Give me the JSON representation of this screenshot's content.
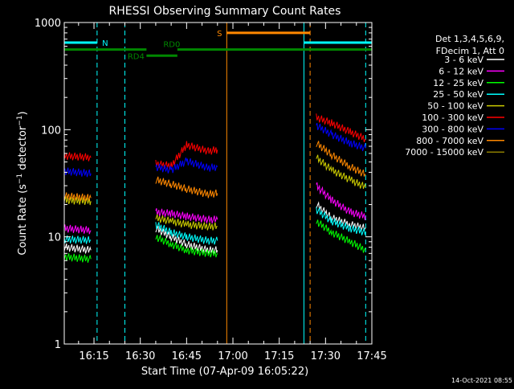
{
  "chart_data": {
    "type": "line",
    "title": "RHESSI Observing Summary Count Rates",
    "xlabel": "Start Time (07-Apr-09 16:05:22)",
    "ylabel": "Count Rate (s⁻¹ detector⁻¹)",
    "ylabel_parts": {
      "a": "Count Rate (s",
      "exp1": "−1",
      "b": " detector",
      "exp2": "−1",
      "c": ")"
    },
    "timestamp": "14-Oct-2021 08:55",
    "y_scale": "log",
    "ylim": [
      1,
      1000
    ],
    "xlim": [
      "16:05:22",
      "17:45:00"
    ],
    "y_ticks": [
      {
        "value": 1,
        "label": "1"
      },
      {
        "value": 10,
        "label": "10"
      },
      {
        "value": 100,
        "label": "100"
      },
      {
        "value": 1000,
        "label": "1000"
      }
    ],
    "x_ticks": [
      {
        "value": "16:15",
        "label": "16:15"
      },
      {
        "value": "16:30",
        "label": "16:30"
      },
      {
        "value": "16:45",
        "label": "16:45"
      },
      {
        "value": "17:00",
        "label": "17:00"
      },
      {
        "value": "17:15",
        "label": "17:15"
      },
      {
        "value": "17:30",
        "label": "17:30"
      },
      {
        "value": "17:45",
        "label": "17:45"
      }
    ],
    "legend_header": [
      "Det 1,3,4,5,6,9,",
      "FDecim 1, Att 0"
    ],
    "legend_position": "right",
    "series": [
      {
        "name": "3 - 6 keV",
        "color": "#ffffff",
        "segments": [
          {
            "t": [
              "16:05:22",
              "16:14:00"
            ],
            "v": [
              8,
              7.5
            ]
          },
          {
            "t": [
              "16:35:00",
              "16:40:00",
              "16:45:00",
              "16:52:00",
              "16:55:00"
            ],
            "v": [
              12,
              10,
              8.5,
              7.5,
              7.5
            ]
          },
          {
            "t": [
              "17:27:00",
              "17:32:00",
              "17:38:00",
              "17:43:00"
            ],
            "v": [
              20,
              15,
              13,
              12
            ]
          }
        ]
      },
      {
        "name": "6 - 12 keV",
        "color": "#ff00ff",
        "segments": [
          {
            "t": [
              "16:05:22",
              "16:14:00"
            ],
            "v": [
              12,
              11.5
            ]
          },
          {
            "t": [
              "16:35:00",
              "16:40:00",
              "16:45:00",
              "16:52:00",
              "16:55:00"
            ],
            "v": [
              17,
              16.5,
              15.5,
              14.5,
              14.5
            ]
          },
          {
            "t": [
              "17:27:00",
              "17:32:00",
              "17:38:00",
              "17:43:00"
            ],
            "v": [
              30,
              22,
              17,
              15.5
            ]
          }
        ]
      },
      {
        "name": "12 - 25 keV",
        "color": "#00ff00",
        "segments": [
          {
            "t": [
              "16:05:22",
              "16:14:00"
            ],
            "v": [
              6.5,
              6.2
            ]
          },
          {
            "t": [
              "16:35:00",
              "16:40:00",
              "16:45:00",
              "16:52:00",
              "16:55:00"
            ],
            "v": [
              10,
              8.5,
              7.5,
              7,
              7
            ]
          },
          {
            "t": [
              "17:27:00",
              "17:32:00",
              "17:38:00",
              "17:43:00"
            ],
            "v": [
              14,
              11,
              9,
              7.5
            ]
          }
        ]
      },
      {
        "name": "25 - 50 keV",
        "color": "#00ffff",
        "segments": [
          {
            "t": [
              "16:05:22",
              "16:14:00"
            ],
            "v": [
              9.5,
              9.3
            ]
          },
          {
            "t": [
              "16:35:00",
              "16:40:00",
              "16:45:00",
              "16:52:00",
              "16:55:00"
            ],
            "v": [
              13,
              11,
              10,
              9.2,
              9.2
            ]
          },
          {
            "t": [
              "17:27:00",
              "17:32:00",
              "17:38:00",
              "17:43:00"
            ],
            "v": [
              18,
              14,
              12,
              11
            ]
          }
        ]
      },
      {
        "name": "50 - 100 keV",
        "color": "#cccc00",
        "segments": [
          {
            "t": [
              "16:05:22",
              "16:14:00"
            ],
            "v": [
              22,
              21.5
            ]
          },
          {
            "t": [
              "16:35:00",
              "16:40:00",
              "16:45:00",
              "16:52:00",
              "16:55:00"
            ],
            "v": [
              15,
              14,
              13,
              12.5,
              12.5
            ]
          },
          {
            "t": [
              "17:27:00",
              "17:32:00",
              "17:38:00",
              "17:43:00"
            ],
            "v": [
              55,
              42,
              34,
              29
            ]
          }
        ]
      },
      {
        "name": "100 - 300 keV",
        "color": "#ff0000",
        "segments": [
          {
            "t": [
              "16:05:22",
              "16:14:00"
            ],
            "v": [
              57,
              55
            ]
          },
          {
            "t": [
              "16:35:00",
              "16:40:00",
              "16:45:00",
              "16:52:00",
              "16:55:00"
            ],
            "v": [
              48,
              46,
              72,
              63,
              65
            ]
          },
          {
            "t": [
              "17:27:00",
              "17:32:00",
              "17:38:00",
              "17:43:00"
            ],
            "v": [
              130,
              115,
              95,
              82
            ]
          }
        ]
      },
      {
        "name": "300 - 800 keV",
        "color": "#0000ff",
        "segments": [
          {
            "t": [
              "16:05:22",
              "16:14:00"
            ],
            "v": [
              41,
              39
            ]
          },
          {
            "t": [
              "16:35:00",
              "16:40:00",
              "16:45:00",
              "16:52:00",
              "16:55:00"
            ],
            "v": [
              45,
              42,
              51,
              44,
              45
            ]
          },
          {
            "t": [
              "17:27:00",
              "17:32:00",
              "17:38:00",
              "17:43:00"
            ],
            "v": [
              110,
              90,
              75,
              67
            ]
          }
        ]
      },
      {
        "name": "800 - 7000 keV",
        "color": "#ff8800",
        "segments": [
          {
            "t": [
              "16:05:22",
              "16:14:00"
            ],
            "v": [
              24,
              23
            ]
          },
          {
            "t": [
              "16:35:00",
              "16:40:00",
              "16:45:00",
              "16:52:00",
              "16:55:00"
            ],
            "v": [
              34,
              31,
              28,
              25,
              25.5
            ]
          },
          {
            "t": [
              "17:27:00",
              "17:32:00",
              "17:38:00",
              "17:43:00"
            ],
            "v": [
              75,
              58,
              45,
              38
            ]
          }
        ]
      },
      {
        "name": "7000 - 15000 keV",
        "color": "#8b7d00",
        "segments": []
      }
    ],
    "flags": [
      {
        "label": "N",
        "color": "#00ffff",
        "y": 650,
        "segments": [
          [
            "16:05:22",
            "16:16:00"
          ],
          [
            "17:23:00",
            "17:45:00"
          ]
        ]
      },
      {
        "label": "RD0",
        "color": "#008800",
        "y": 560,
        "segments": [
          [
            "16:05:22",
            "16:32:00"
          ],
          [
            "16:42:00",
            "17:45:00"
          ]
        ]
      },
      {
        "label": "RD4",
        "color": "#008800",
        "y": 490,
        "segments": [
          [
            "16:32:00",
            "16:42:00"
          ]
        ]
      },
      {
        "label": "S",
        "color": "#ff8800",
        "y": 800,
        "segments": [
          [
            "16:58:00",
            "17:25:00"
          ]
        ]
      }
    ],
    "vlines": [
      {
        "t": "16:16:00",
        "color": "#00ffff",
        "dashed": true
      },
      {
        "t": "16:25:00",
        "color": "#00ffff",
        "dashed": true
      },
      {
        "t": "16:58:00",
        "color": "#ff8800",
        "dashed": false
      },
      {
        "t": "17:23:00",
        "color": "#00ffff",
        "dashed": false
      },
      {
        "t": "17:25:00",
        "color": "#ff8800",
        "dashed": true
      },
      {
        "t": "17:43:00",
        "color": "#00ffff",
        "dashed": true
      }
    ]
  }
}
